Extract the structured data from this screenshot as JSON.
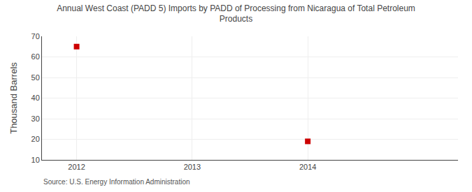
{
  "chart_data": {
    "type": "scatter",
    "title": "Annual West Coast (PADD 5) Imports by PADD of Processing from Nicaragua of Total Petroleum\nProducts",
    "y_label": "Thousand Barrels",
    "annotations": [
      "Source: U.S. Energy Information Administration"
    ],
    "x": [
      2012,
      2014
    ],
    "values": [
      65,
      19
    ],
    "color": "#cc0000",
    "marker": "square",
    "xlim": [
      2011.7,
      2015.3
    ],
    "xticks": [
      2012,
      2013,
      2014
    ],
    "ylim": [
      10,
      70
    ],
    "yticks": [
      10,
      20,
      30,
      40,
      50,
      60,
      70
    ],
    "grid": true
  }
}
